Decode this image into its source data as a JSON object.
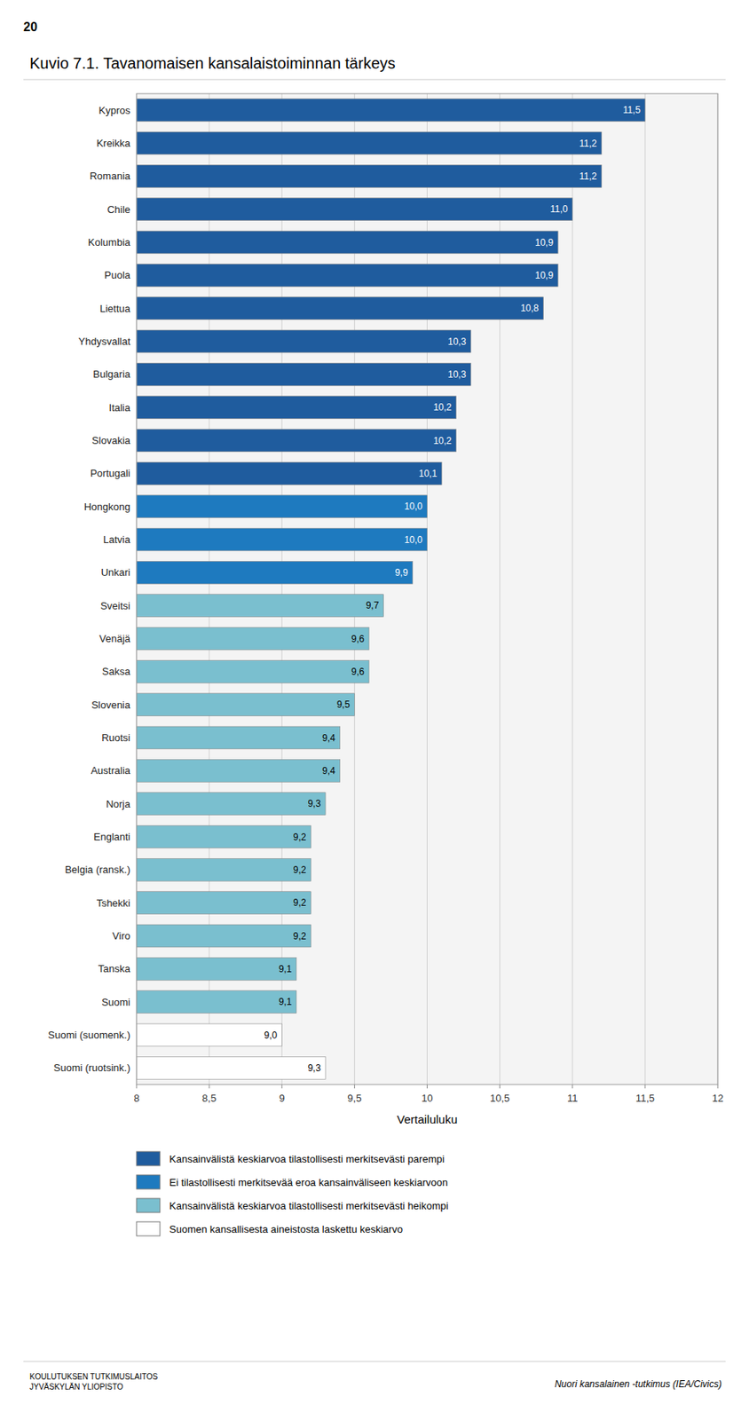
{
  "chart_data": {
    "type": "bar",
    "orientation": "horizontal",
    "title": "Kuvio 7.1.  Tavanomaisen kansalaistoiminnan tärkeys",
    "x_label": "Vertailuluku",
    "categories": [
      "Kypros",
      "Kreikka",
      "Romania",
      "Chile",
      "Kolumbia",
      "Puola",
      "Liettua",
      "Yhdysvallat",
      "Bulgaria",
      "Italia",
      "Slovakia",
      "Portugali",
      "Hongkong",
      "Latvia",
      "Unkari",
      "Sveitsi",
      "Venäjä",
      "Saksa",
      "Slovenia",
      "Ruotsi",
      "Australia",
      "Norja",
      "Englanti",
      "Belgia (ransk.)",
      "Tshekki",
      "Viro",
      "Tanska",
      "Suomi",
      "Suomi (suomenk.)",
      "Suomi (ruotsink.)"
    ],
    "values": [
      11.5,
      11.2,
      11.2,
      11.0,
      10.9,
      10.9,
      10.8,
      10.3,
      10.3,
      10.2,
      10.2,
      10.1,
      10.0,
      10.0,
      9.9,
      9.7,
      9.6,
      9.6,
      9.5,
      9.4,
      9.4,
      9.3,
      9.2,
      9.2,
      9.2,
      9.2,
      9.1,
      9.1,
      9.0,
      9.3
    ],
    "value_labels": [
      "11,5",
      "11,2",
      "11,2",
      "11,0",
      "10,9",
      "10,9",
      "10,8",
      "10,3",
      "10,3",
      "10,2",
      "10,2",
      "10,1",
      "10,0",
      "10,0",
      "9,9",
      "9,7",
      "9,6",
      "9,6",
      "9,5",
      "9,4",
      "9,4",
      "9,3",
      "9,2",
      "9,2",
      "9,2",
      "9,2",
      "9,1",
      "9,1",
      "9,0",
      "9,3"
    ],
    "colors": [
      "#1f5c9e",
      "#1f5c9e",
      "#1f5c9e",
      "#1f5c9e",
      "#1f5c9e",
      "#1f5c9e",
      "#1f5c9e",
      "#1f5c9e",
      "#1f5c9e",
      "#1f5c9e",
      "#1f5c9e",
      "#1f5c9e",
      "#1e7abf",
      "#1e7abf",
      "#1e7abf",
      "#7abfcf",
      "#7abfcf",
      "#7abfcf",
      "#7abfcf",
      "#7abfcf",
      "#7abfcf",
      "#7abfcf",
      "#7abfcf",
      "#7abfcf",
      "#7abfcf",
      "#7abfcf",
      "#7abfcf",
      "#7abfcf",
      "#ffffff",
      "#ffffff"
    ],
    "data_labels": true,
    "xlim": [
      8,
      12
    ],
    "xticks": [
      8,
      {
        "value": 8.5,
        "label": "8,5"
      },
      9,
      {
        "value": 9.5,
        "label": "9,5"
      },
      10,
      {
        "value": 10.5,
        "label": "10,5"
      },
      11,
      {
        "value": 11.5,
        "label": "11,5"
      },
      12
    ],
    "grid": true,
    "legend_items": [
      {
        "name": "Kansainvälistä keskiarvoa tilastollisesti merkitsevästi parempi",
        "color": "#1f5c9e"
      },
      {
        "name": "Ei tilastollisesti merkitsevää eroa kansainväliseen keskiarvoon",
        "color": "#1e7abf"
      },
      {
        "name": "Kansainvälistä keskiarvoa tilastollisesti merkitsevästi heikompi",
        "color": "#7abfcf"
      },
      {
        "name": "Suomen kansallisesta aineistosta laskettu keskiarvo",
        "color": "#ffffff"
      }
    ],
    "annotations": [
      "20",
      "KOULUTUKSEN TUTKIMUSLAITOS\nJYVÄSKYLÄN YLIOPISTO",
      "Nuori kansalainen -tutkimus (IEA/Civics)"
    ]
  }
}
